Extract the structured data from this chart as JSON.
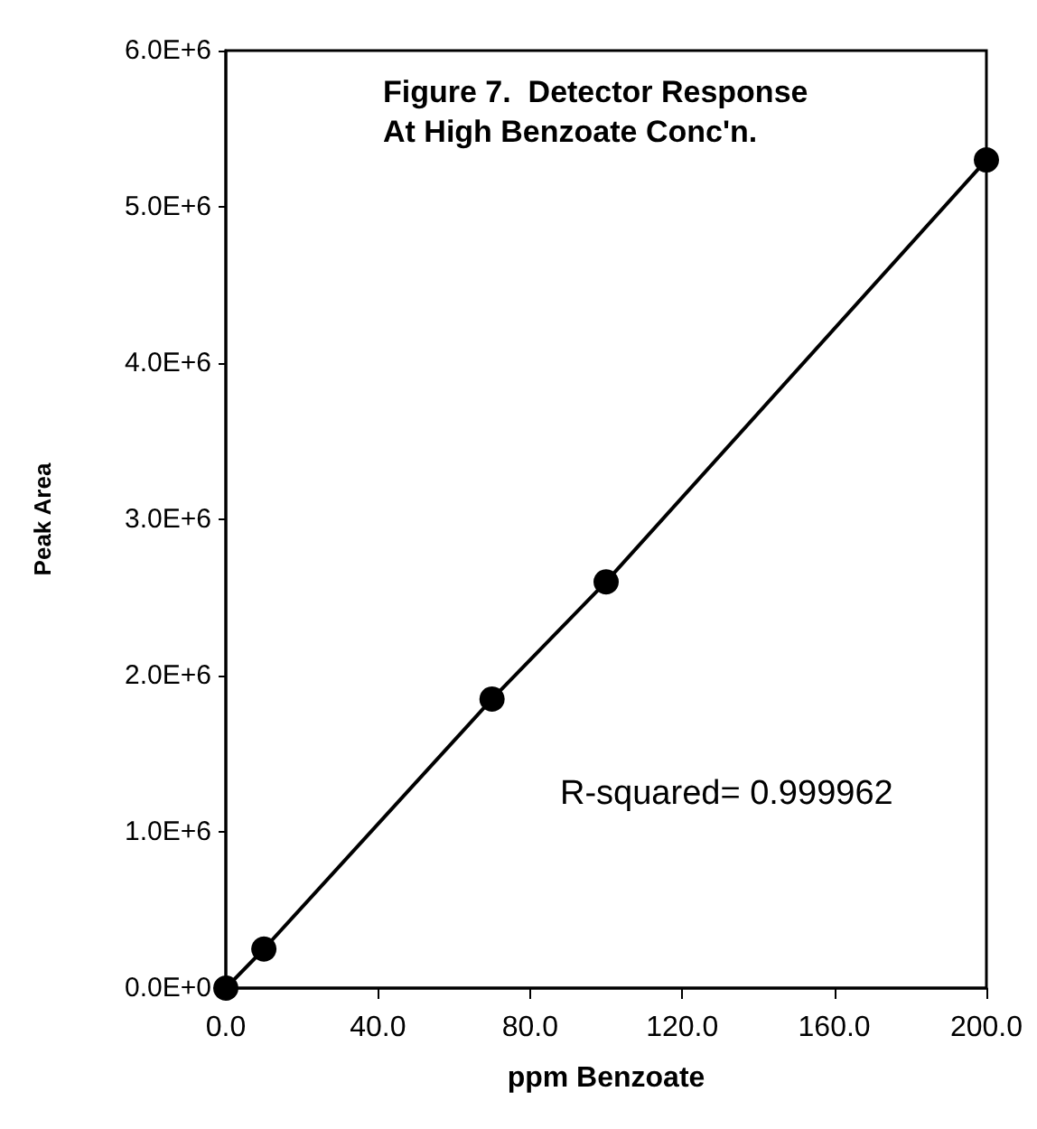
{
  "chart_data": {
    "type": "line",
    "title": "Figure 7.  Detector Response\nAt High Benzoate Conc'n.",
    "xlabel": "ppm Benzoate",
    "ylabel": "Peak Area",
    "annotations": [
      "R-squared= 0.999962"
    ],
    "x": [
      0,
      10,
      70,
      100,
      200
    ],
    "series": [
      {
        "color": "#000000",
        "values": [
          0,
          250000,
          1850000,
          2600000,
          5300000
        ]
      }
    ],
    "marker": "circle",
    "line_style": "solid",
    "grid": false,
    "xlim": [
      0,
      200
    ],
    "xticks": [
      {
        "value": 0,
        "label": "0.0"
      },
      {
        "value": 40,
        "label": "40.0"
      },
      {
        "value": 80,
        "label": "80.0"
      },
      {
        "value": 120,
        "label": "120.0"
      },
      {
        "value": 160,
        "label": "160.0"
      },
      {
        "value": 200,
        "label": "200.0"
      }
    ],
    "ylim": [
      0,
      6000000
    ],
    "yticks": [
      {
        "value": 0,
        "label": "0.0E+0"
      },
      {
        "value": 1000000,
        "label": "1.0E+6"
      },
      {
        "value": 2000000,
        "label": "2.0E+6"
      },
      {
        "value": 3000000,
        "label": "3.0E+6"
      },
      {
        "value": 4000000,
        "label": "4.0E+6"
      },
      {
        "value": 5000000,
        "label": "5.0E+6"
      },
      {
        "value": 6000000,
        "label": "6.0E+6"
      }
    ]
  }
}
